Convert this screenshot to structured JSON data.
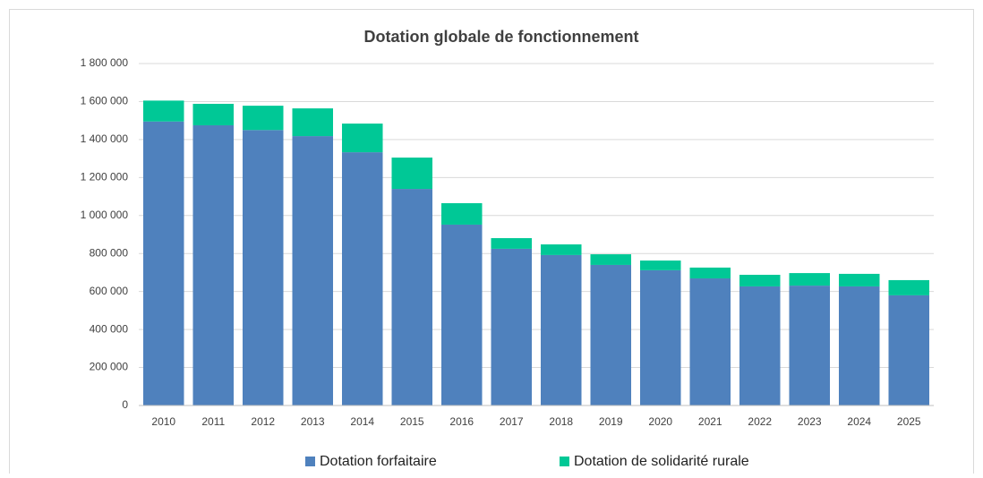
{
  "chart_data": {
    "type": "stacked_bar",
    "title": "Dotation globale de fonctionnement",
    "categories": [
      "2010",
      "2011",
      "2012",
      "2013",
      "2014",
      "2015",
      "2016",
      "2017",
      "2018",
      "2019",
      "2020",
      "2021",
      "2022",
      "2023",
      "2024",
      "2025"
    ],
    "series": [
      {
        "name": "Dotation forfaitaire",
        "color": "#4f81bd",
        "values": [
          1495000,
          1475000,
          1450000,
          1418000,
          1333000,
          1140000,
          952000,
          825000,
          792000,
          740000,
          712000,
          669000,
          627000,
          631000,
          627000,
          580000
        ]
      },
      {
        "name": "Dotation de solidarité rurale",
        "color": "#00c896",
        "values": [
          110000,
          113000,
          128000,
          146000,
          151000,
          165000,
          113000,
          56000,
          56000,
          56000,
          51000,
          57000,
          61000,
          66000,
          66000,
          80000
        ]
      }
    ],
    "ylim": [
      0,
      1800000
    ],
    "yticks": [
      0,
      {
        "value": 200000,
        "label": "200 000"
      },
      {
        "value": 400000,
        "label": "400 000"
      },
      {
        "value": 600000,
        "label": "600 000"
      },
      {
        "value": 800000,
        "label": "800 000"
      },
      {
        "value": 1000000,
        "label": "1 000 000"
      },
      {
        "value": 1200000,
        "label": "1 200 000"
      },
      {
        "value": 1400000,
        "label": "1 400 000"
      },
      {
        "value": 1600000,
        "label": "1 600 000"
      },
      {
        "value": 1800000,
        "label": "1 800 000"
      }
    ],
    "grid": true,
    "legend": "bottom"
  }
}
